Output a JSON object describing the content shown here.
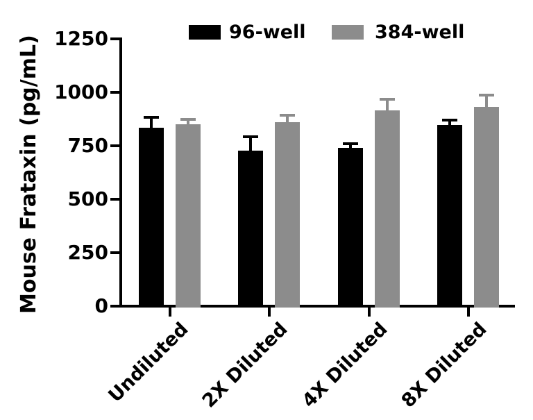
{
  "chart_data": {
    "type": "bar",
    "title": "",
    "ylabel": "Mouse Frataxin (pg/mL)",
    "xlabel": "",
    "categories": [
      "Undiluted",
      "2X Diluted",
      "4X Diluted",
      "8X Diluted"
    ],
    "series": [
      {
        "name": "96-well",
        "color": "#000000",
        "values": [
          835,
          728,
          739,
          848
        ],
        "errors_upper": [
          48,
          65,
          22,
          22
        ]
      },
      {
        "name": "384-well",
        "color": "#8c8c8c",
        "values": [
          852,
          860,
          917,
          932
        ],
        "errors_upper": [
          20,
          33,
          49,
          56
        ]
      }
    ],
    "ylim": [
      0,
      1250
    ],
    "yticks": [
      0,
      250,
      500,
      750,
      1000,
      1250
    ],
    "grid": false,
    "legend_position": "top",
    "error_bars": "upper-only"
  },
  "legend": {
    "items": [
      {
        "label": "96-well",
        "color": "#000000"
      },
      {
        "label": "384-well",
        "color": "#8c8c8c"
      }
    ]
  },
  "colors": {
    "axis": "#000000",
    "background": "#ffffff",
    "series_black": "#000000",
    "series_gray": "#8c8c8c"
  }
}
